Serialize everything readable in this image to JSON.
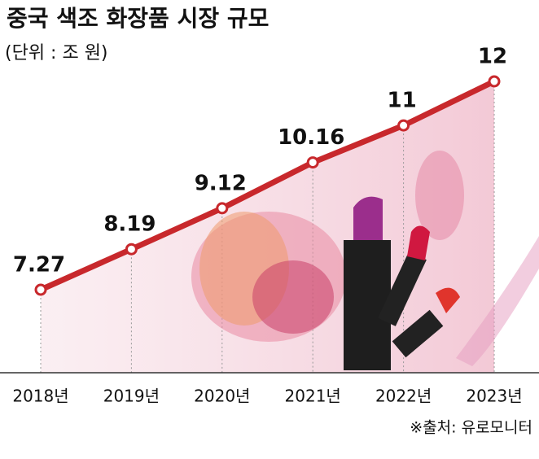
{
  "chart_data": {
    "type": "line",
    "title": "중국 색조 화장품 시장 규모",
    "subtitle": "(단위 : 조 원)",
    "categories": [
      "2018년",
      "2019년",
      "2020년",
      "2021년",
      "2022년",
      "2023년"
    ],
    "values": [
      7.27,
      8.19,
      9.12,
      10.16,
      11,
      12
    ],
    "color": "#c8282c",
    "source": "※출처: 유로모니터"
  }
}
